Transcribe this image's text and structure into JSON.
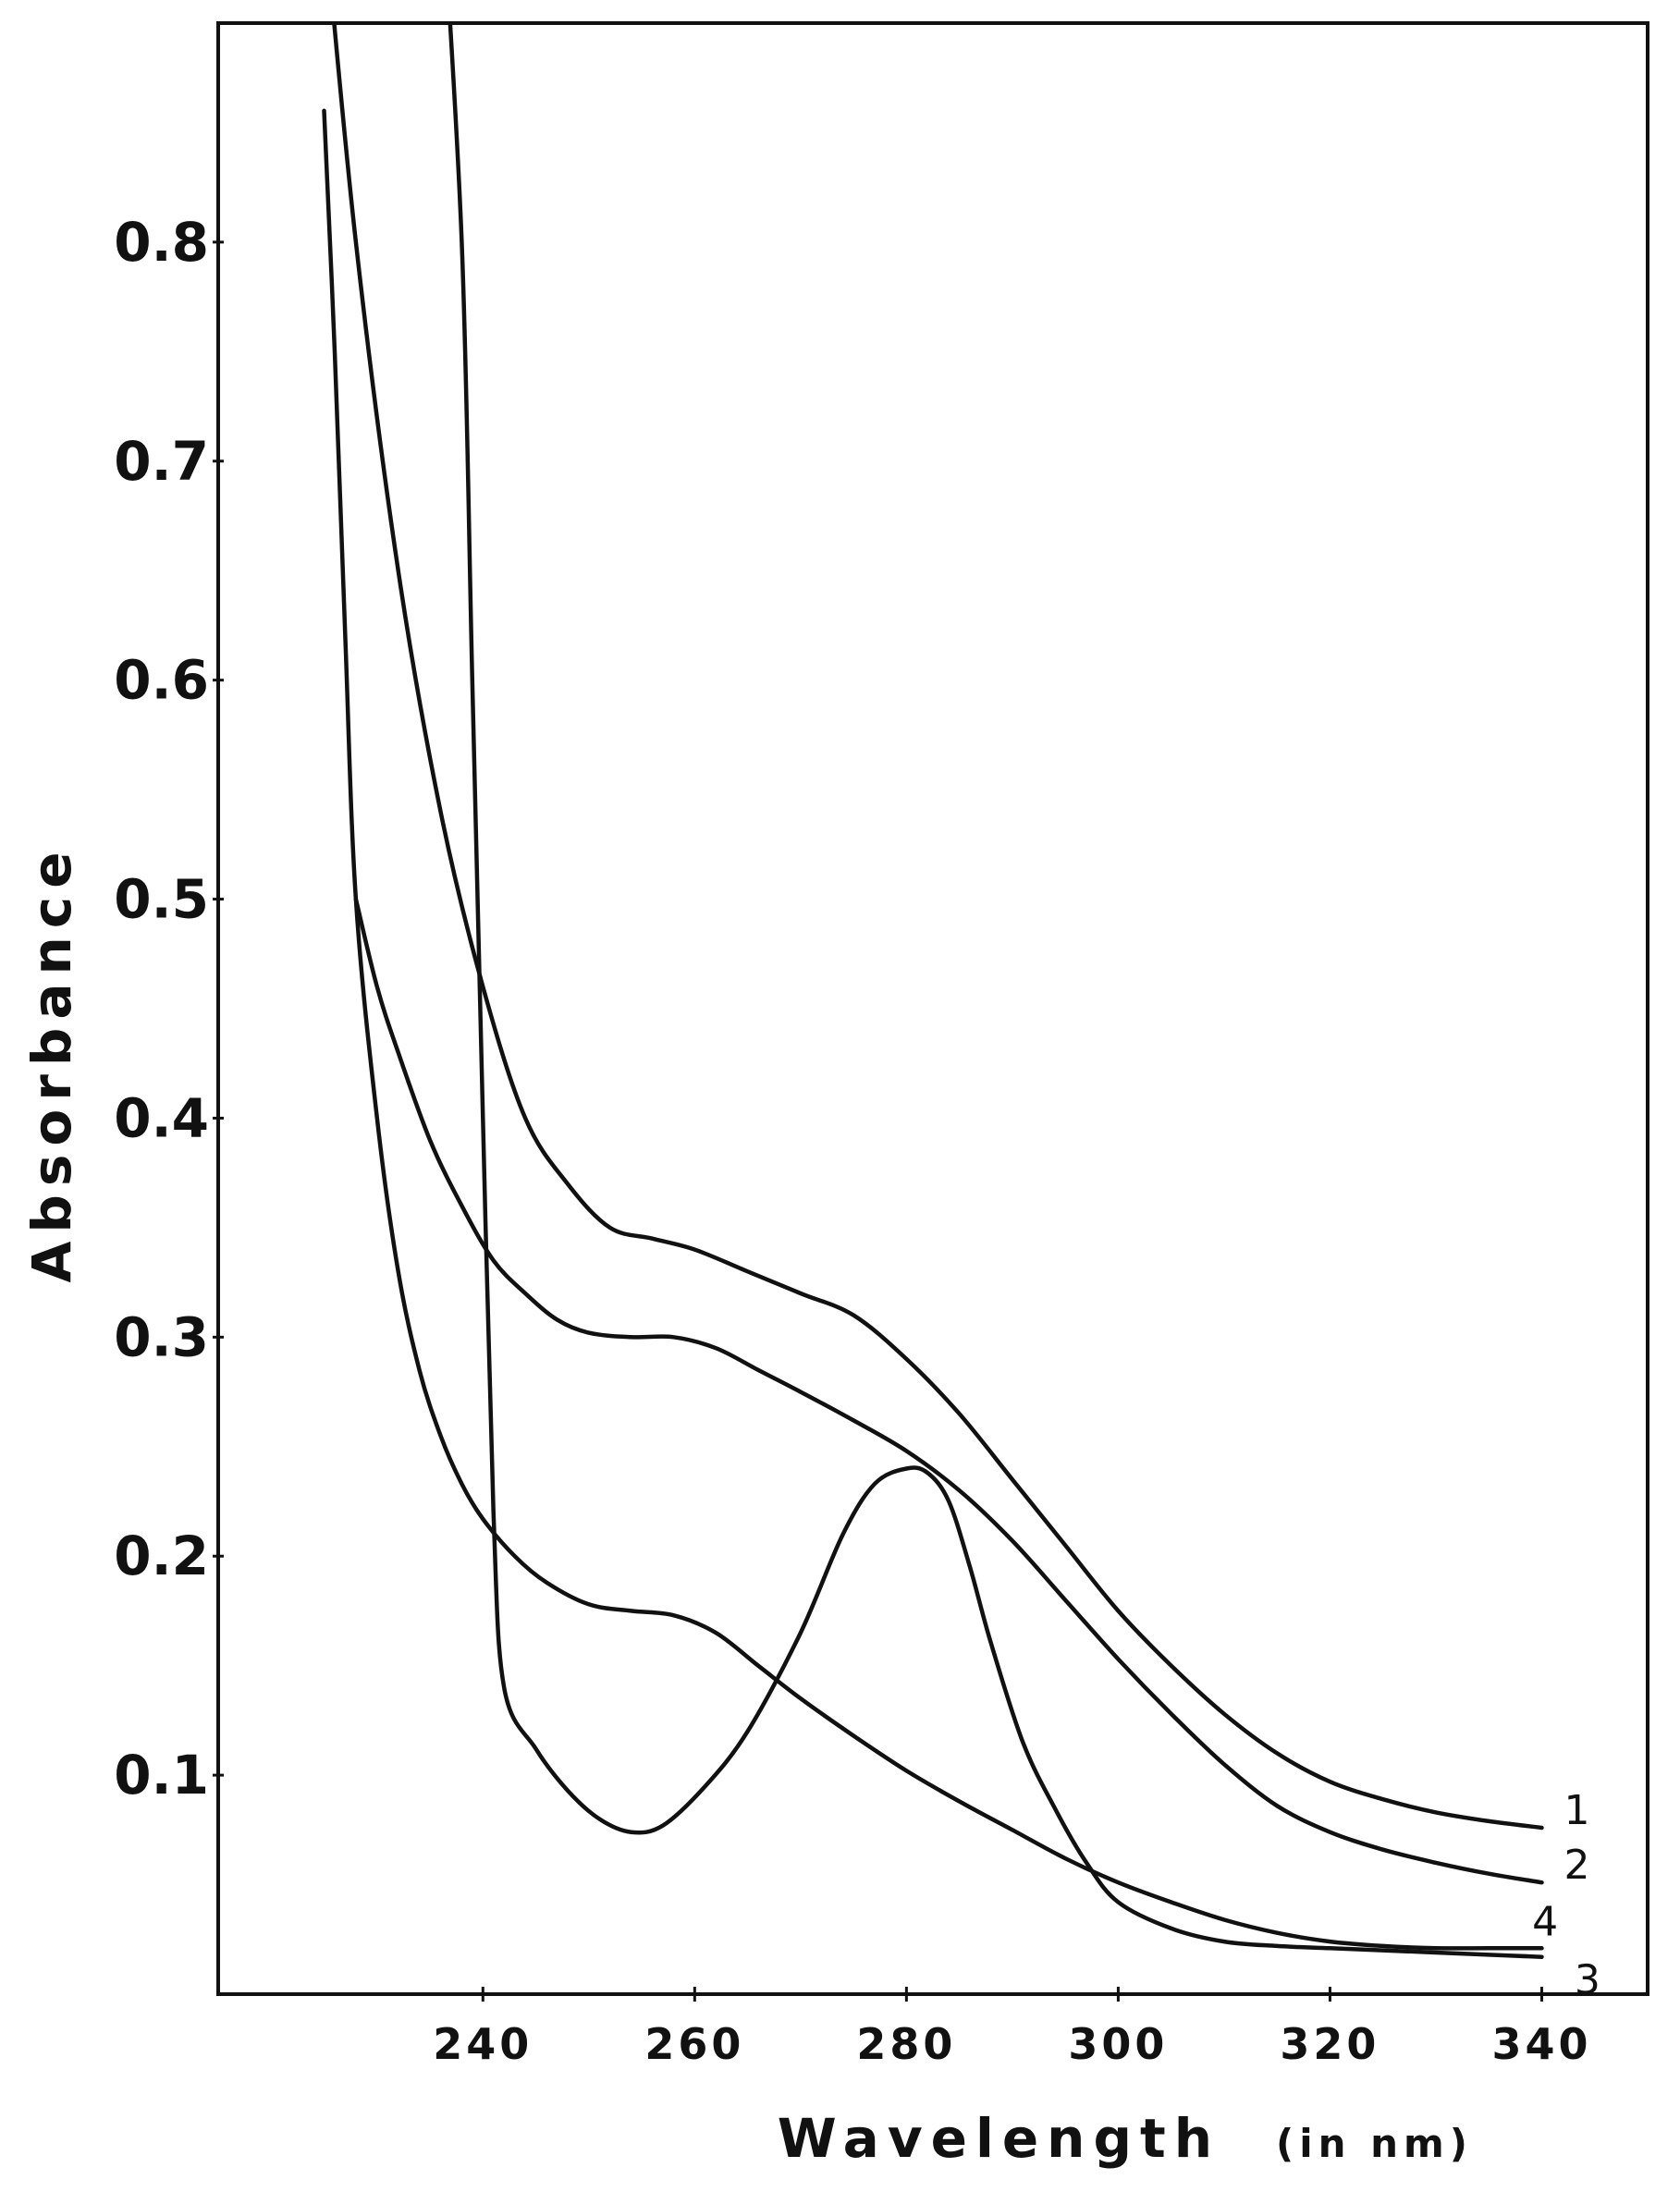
{
  "chart_data": {
    "type": "line",
    "xlabel": "Wavelength",
    "xlabel_unit": "(in nm)",
    "ylabel": "Absorbance",
    "xlim": [
      215,
      350
    ],
    "ylim": [
      0,
      0.9
    ],
    "x_ticks": [
      240,
      260,
      280,
      300,
      320,
      340
    ],
    "y_ticks": [
      0.1,
      0.2,
      0.3,
      0.4,
      0.5,
      0.6,
      0.7,
      0.8
    ],
    "y_tick_labels": [
      "0.1",
      "0.2",
      "0.3",
      "0.4",
      "0.5",
      "0.6",
      "0.7",
      "0.8"
    ],
    "grid": false,
    "series": [
      {
        "name": "1",
        "label_x": 340,
        "x": [
          225,
          228,
          232,
          236,
          240,
          244,
          248,
          252,
          256,
          260,
          265,
          270,
          275,
          280,
          285,
          290,
          295,
          300,
          305,
          310,
          315,
          320,
          325,
          330,
          335,
          340
        ],
        "y": [
          0.95,
          0.8,
          0.65,
          0.54,
          0.46,
          0.4,
          0.37,
          0.35,
          0.345,
          0.34,
          0.33,
          0.32,
          0.31,
          0.29,
          0.265,
          0.235,
          0.205,
          0.175,
          0.15,
          0.128,
          0.11,
          0.097,
          0.089,
          0.083,
          0.079,
          0.076
        ]
      },
      {
        "name": "2",
        "label_x": 340,
        "x": [
          228,
          230,
          232,
          235,
          238,
          241,
          244,
          247,
          250,
          254,
          258,
          262,
          266,
          270,
          275,
          280,
          285,
          290,
          295,
          300,
          305,
          310,
          315,
          320,
          325,
          330,
          335,
          340
        ],
        "y": [
          0.5,
          0.46,
          0.43,
          0.39,
          0.36,
          0.335,
          0.32,
          0.308,
          0.302,
          0.3,
          0.3,
          0.295,
          0.285,
          0.275,
          0.262,
          0.248,
          0.23,
          0.207,
          0.18,
          0.153,
          0.128,
          0.105,
          0.086,
          0.074,
          0.066,
          0.06,
          0.055,
          0.051
        ]
      },
      {
        "name": "3",
        "label_x": 341,
        "x": [
          236,
          238,
          239,
          240,
          241,
          242,
          245,
          248,
          251,
          254,
          257,
          261,
          265,
          270,
          274,
          277,
          280,
          282,
          284,
          286,
          288,
          291,
          294,
          297,
          300,
          305,
          310,
          315,
          320,
          325,
          330,
          335,
          340
        ],
        "y": [
          0.97,
          0.8,
          0.6,
          0.4,
          0.22,
          0.14,
          0.112,
          0.093,
          0.08,
          0.074,
          0.077,
          0.095,
          0.12,
          0.165,
          0.21,
          0.233,
          0.24,
          0.238,
          0.225,
          0.195,
          0.16,
          0.115,
          0.085,
          0.06,
          0.042,
          0.03,
          0.024,
          0.022,
          0.021,
          0.02,
          0.019,
          0.018,
          0.017
        ]
      },
      {
        "name": "4",
        "label_x": 337,
        "x": [
          225,
          226,
          227,
          228,
          230,
          232,
          234,
          236,
          238,
          240,
          243,
          246,
          250,
          254,
          258,
          262,
          266,
          270,
          275,
          280,
          285,
          290,
          295,
          300,
          305,
          310,
          315,
          320,
          325,
          330,
          335,
          340
        ],
        "y": [
          0.86,
          0.75,
          0.62,
          0.5,
          0.4,
          0.33,
          0.285,
          0.255,
          0.233,
          0.217,
          0.2,
          0.188,
          0.178,
          0.175,
          0.173,
          0.165,
          0.15,
          0.135,
          0.118,
          0.102,
          0.088,
          0.075,
          0.062,
          0.051,
          0.042,
          0.034,
          0.028,
          0.024,
          0.022,
          0.021,
          0.021,
          0.021
        ]
      }
    ]
  }
}
